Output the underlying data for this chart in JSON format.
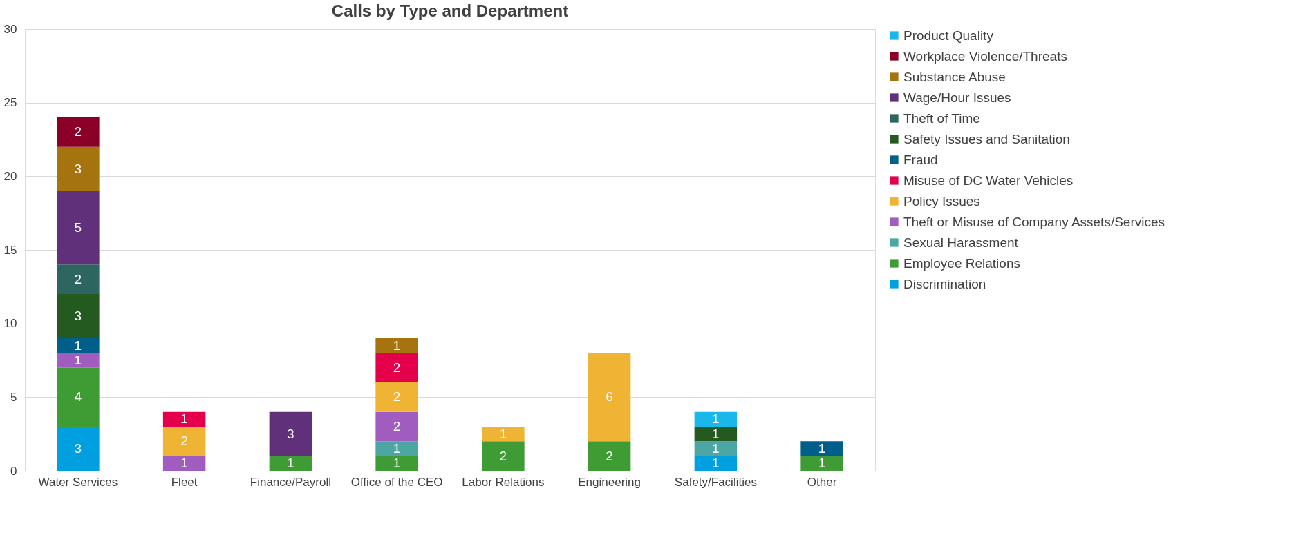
{
  "chart_data": {
    "type": "bar",
    "title": "Calls by Type and Department",
    "stacked": true,
    "data_labels": true,
    "categories": [
      "Water Services",
      "Fleet",
      "Finance/Payroll",
      "Office of the CEO",
      "Labor Relations",
      "Engineering",
      "Safety/Facilities",
      "Other"
    ],
    "series": [
      {
        "name": "Discrimination",
        "color": "#009fdf",
        "values": [
          3,
          null,
          null,
          null,
          null,
          null,
          1,
          null
        ]
      },
      {
        "name": "Employee Relations",
        "color": "#3f9c35",
        "values": [
          4,
          null,
          1,
          1,
          2,
          2,
          null,
          1
        ]
      },
      {
        "name": "Sexual Harassment",
        "color": "#4ca7a4",
        "values": [
          null,
          null,
          null,
          1,
          null,
          null,
          1,
          null
        ]
      },
      {
        "name": "Theft or Misuse of Company Assets/Services",
        "color": "#a05cbf",
        "values": [
          1,
          1,
          null,
          2,
          null,
          null,
          null,
          null
        ]
      },
      {
        "name": "Policy Issues",
        "color": "#f0b434",
        "values": [
          null,
          2,
          null,
          2,
          1,
          6,
          null,
          null
        ]
      },
      {
        "name": "Misuse of DC Water Vehicles",
        "color": "#e4004b",
        "values": [
          null,
          1,
          null,
          2,
          null,
          null,
          null,
          null
        ]
      },
      {
        "name": "Fraud",
        "color": "#005e8a",
        "values": [
          1,
          null,
          null,
          null,
          null,
          null,
          null,
          1
        ]
      },
      {
        "name": "Safety Issues and Sanitation",
        "color": "#245a20",
        "values": [
          3,
          null,
          null,
          null,
          null,
          null,
          1,
          null
        ]
      },
      {
        "name": "Theft of Time",
        "color": "#2d6560",
        "values": [
          2,
          null,
          null,
          null,
          null,
          null,
          null,
          null
        ]
      },
      {
        "name": "Wage/Hour Issues",
        "color": "#60317a",
        "values": [
          5,
          null,
          3,
          null,
          null,
          null,
          null,
          null
        ]
      },
      {
        "name": "Substance Abuse",
        "color": "#a6740f",
        "values": [
          3,
          null,
          null,
          1,
          null,
          null,
          null,
          null
        ]
      },
      {
        "name": "Workplace Violence/Threats",
        "color": "#8a0026",
        "values": [
          2,
          null,
          null,
          null,
          null,
          null,
          null,
          null
        ]
      },
      {
        "name": "Product Quality",
        "color": "#1ab7ea",
        "values": [
          null,
          null,
          null,
          null,
          null,
          null,
          1,
          null
        ]
      }
    ],
    "ylim": [
      0,
      30
    ],
    "yticks": [
      0,
      5,
      10,
      15,
      20,
      25,
      30
    ],
    "grid": "y",
    "legend": "right"
  }
}
